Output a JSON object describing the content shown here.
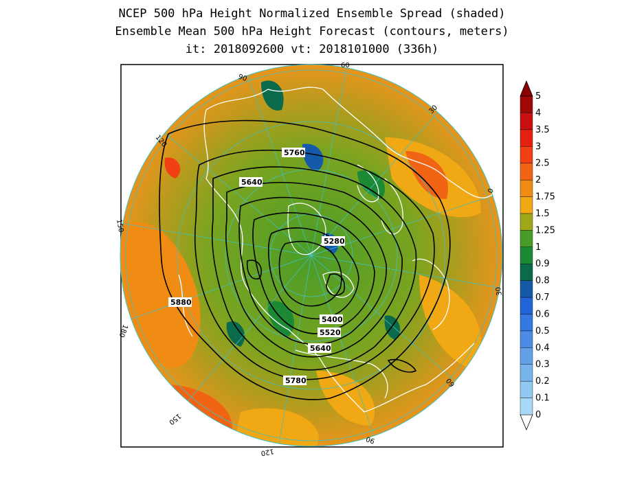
{
  "title": {
    "line1": "NCEP 500 hPa Height Normalized Ensemble Spread (shaded)",
    "line2": "Ensemble Mean 500 hPa Height Forecast (contours, meters)",
    "line3": "it: 2018092600      vt: 2018101000 (336h)"
  },
  "colorbar": {
    "stops": [
      {
        "label": "0",
        "color": "#a8d8f8"
      },
      {
        "label": "0.1",
        "color": "#90c8f0"
      },
      {
        "label": "0.2",
        "color": "#78b4ec"
      },
      {
        "label": "0.3",
        "color": "#64a0e8"
      },
      {
        "label": "0.4",
        "color": "#4c8ce4"
      },
      {
        "label": "0.5",
        "color": "#3478e0"
      },
      {
        "label": "0.6",
        "color": "#2064d8"
      },
      {
        "label": "0.7",
        "color": "#145aa8"
      },
      {
        "label": "0.8",
        "color": "#0c6a4c"
      },
      {
        "label": "0.9",
        "color": "#1c8a34"
      },
      {
        "label": "1",
        "color": "#4a9c28"
      },
      {
        "label": "1.25",
        "color": "#a0a818"
      },
      {
        "label": "1.5",
        "color": "#f0a814"
      },
      {
        "label": "1.75",
        "color": "#f08c14"
      },
      {
        "label": "2",
        "color": "#f06414"
      },
      {
        "label": "2.5",
        "color": "#f04014"
      },
      {
        "label": "3",
        "color": "#e42010"
      },
      {
        "label": "3.5",
        "color": "#c81010"
      },
      {
        "label": "4",
        "color": "#a00808"
      },
      {
        "label": "5",
        "color": ""
      }
    ],
    "top_color": "#8c0000"
  },
  "contour_labels": [
    {
      "text": "5760",
      "lon": 105,
      "lat": 50,
      "unit": "m"
    },
    {
      "text": "5640",
      "lon": 110,
      "lat": 60,
      "unit": "m"
    },
    {
      "text": "5280",
      "lon": 70,
      "lat": 83,
      "unit": "m"
    },
    {
      "text": "5880",
      "lon": 155,
      "lat": 35,
      "unit": "m"
    },
    {
      "text": "5400",
      "lon": -20,
      "lat": 72,
      "unit": "m"
    },
    {
      "text": "5520",
      "lon": -30,
      "lat": 68,
      "unit": "m"
    },
    {
      "text": "5640",
      "lon": -60,
      "lat": 60,
      "unit": "m"
    },
    {
      "text": "5780",
      "lon": -110,
      "lat": 43,
      "unit": "m"
    }
  ],
  "grid_labels": [
    "60",
    "30",
    "0",
    "30",
    "60",
    "90",
    "120",
    "150",
    "180",
    "150",
    "120",
    "90"
  ],
  "colors": {
    "coastline": "#ffffff",
    "gridline": "#40c0c0",
    "contour": "#000000"
  }
}
